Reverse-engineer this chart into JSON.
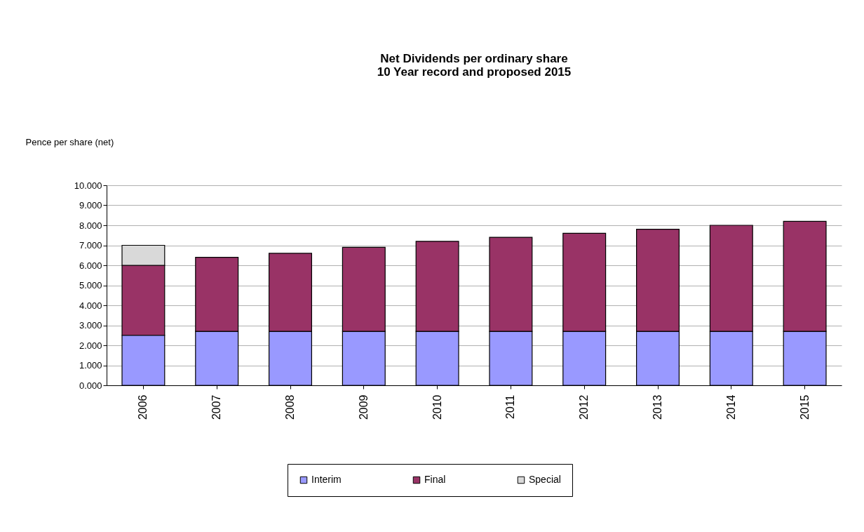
{
  "chart_data": {
    "type": "bar",
    "title": "Net Dividends per ordinary share",
    "subtitle": "10 Year record and proposed 2015",
    "ylabel": "Pence per share (net)",
    "categories": [
      "2006",
      "2007",
      "2008",
      "2009",
      "2010",
      "2011",
      "2012",
      "2013",
      "2014",
      "2015"
    ],
    "stacked": true,
    "series": [
      {
        "name": "Interim",
        "color": "#9999ff",
        "values": [
          2.5,
          2.7,
          2.7,
          2.7,
          2.7,
          2.7,
          2.7,
          2.7,
          2.7,
          2.7
        ]
      },
      {
        "name": "Final",
        "color": "#993366",
        "values": [
          3.5,
          3.7,
          3.9,
          4.2,
          4.5,
          4.7,
          4.9,
          5.1,
          5.3,
          5.5
        ]
      },
      {
        "name": "Special",
        "color": "#d9d9d9",
        "values": [
          1.0,
          null,
          null,
          null,
          null,
          null,
          null,
          null,
          null,
          null
        ]
      }
    ],
    "ylim": [
      0,
      10
    ],
    "yticks": [
      {
        "value": 0,
        "label": "0.000"
      },
      {
        "value": 1,
        "label": "1.000"
      },
      {
        "value": 2,
        "label": "2.000"
      },
      {
        "value": 3,
        "label": "3.000"
      },
      {
        "value": 4,
        "label": "4.000"
      },
      {
        "value": 5,
        "label": "5.000"
      },
      {
        "value": 6,
        "label": "6.000"
      },
      {
        "value": 7,
        "label": "7.000"
      },
      {
        "value": 8,
        "label": "8.000"
      },
      {
        "value": 9,
        "label": "9.000"
      },
      {
        "value": 10,
        "label": "10.000"
      }
    ],
    "grid": "y",
    "legend": "bottom"
  }
}
